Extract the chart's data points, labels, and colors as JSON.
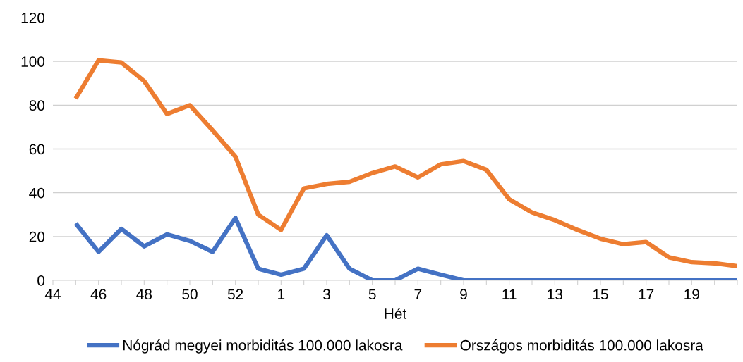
{
  "chart_data": {
    "type": "line",
    "xlabel": "Hét",
    "categories": [
      "44",
      null,
      "46",
      null,
      "48",
      null,
      "50",
      null,
      "52",
      null,
      "1",
      null,
      "3",
      null,
      "5",
      null,
      "7",
      null,
      "9",
      null,
      "11",
      null,
      "13",
      null,
      "15",
      null,
      "17",
      null,
      "19",
      null,
      null
    ],
    "series": [
      {
        "name": "Nógrád megyei morbiditás 100.000 lakosra",
        "color": "#4472c4",
        "values": [
          null,
          26,
          13,
          23.5,
          15.5,
          21,
          18,
          13,
          28.5,
          5.3,
          2.6,
          5.3,
          20.6,
          5.3,
          0,
          0,
          5.3,
          2.6,
          0,
          0,
          0,
          0,
          0,
          0,
          0,
          0,
          0,
          0,
          0,
          0,
          0
        ]
      },
      {
        "name": "Országos morbiditás 100.000 lakosra",
        "color": "#ed7d31",
        "values": [
          null,
          83,
          100.5,
          99.5,
          91,
          76,
          80,
          68.5,
          56.5,
          30,
          23,
          42,
          44,
          45,
          49,
          52,
          47,
          53,
          54.5,
          50.5,
          37,
          31,
          27.5,
          23,
          19,
          16.5,
          17.5,
          10.5,
          8.3,
          7.8,
          6.5
        ]
      }
    ],
    "ylim": [
      0,
      120
    ],
    "yticks": [
      0,
      20,
      40,
      60,
      80,
      100,
      120
    ],
    "grid": "y",
    "legend": "bottom"
  }
}
